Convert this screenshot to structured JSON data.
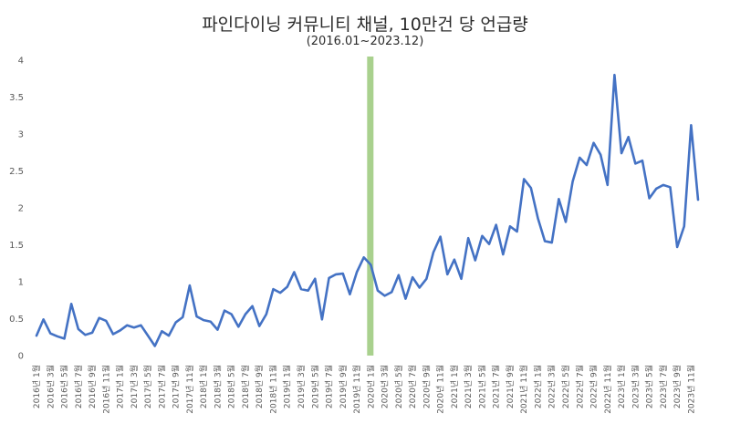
{
  "chart_data": {
    "type": "line",
    "title": "파인다이닝 커뮤니티 채널, 10만건 당 언급량",
    "subtitle": "(2016.01~2023.12)",
    "xlabel": "",
    "ylabel": "",
    "ylim": [
      0,
      4
    ],
    "yticks": [
      "0",
      "0.5",
      "1",
      "1.5",
      "2",
      "2.5",
      "3",
      "3.5",
      "4"
    ],
    "grid": false,
    "legend": "none",
    "line_color": "#4472C4",
    "marker_color": "#A9D18E",
    "marker_label": "2020년 1월",
    "x_labels": [
      "2016년 1월",
      "2016년 3월",
      "2016년 5월",
      "2016년 7월",
      "2016년 9월",
      "2016년 11월",
      "2017년 1월",
      "2017년 3월",
      "2017년 5월",
      "2017년 7월",
      "2017년 9월",
      "2017년 11월",
      "2018년 1월",
      "2018년 3월",
      "2018년 5월",
      "2018년 7월",
      "2018년 9월",
      "2018년 11월",
      "2019년 1월",
      "2019년 3월",
      "2019년 5월",
      "2019년 7월",
      "2019년 9월",
      "2019년 11월",
      "2020년 1월",
      "2020년 3월",
      "2020년 5월",
      "2020년 7월",
      "2020년 9월",
      "2020년 11월",
      "2021년 1월",
      "2021년 3월",
      "2021년 5월",
      "2021년 7월",
      "2021년 9월",
      "2021년 11월",
      "2022년 1월",
      "2022년 3월",
      "2022년 5월",
      "2022년 7월",
      "2022년 9월",
      "2022년 11월",
      "2023년 1월",
      "2023년 3월",
      "2023년 5월",
      "2023년 7월",
      "2023년 9월",
      "2023년 11월"
    ],
    "series": [
      {
        "name": "10만건 당 언급량",
        "values": [
          0.27,
          0.49,
          0.3,
          0.26,
          0.23,
          0.7,
          0.36,
          0.28,
          0.31,
          0.51,
          0.47,
          0.29,
          0.34,
          0.41,
          0.38,
          0.41,
          0.27,
          0.13,
          0.33,
          0.27,
          0.45,
          0.52,
          0.95,
          0.53,
          0.48,
          0.46,
          0.35,
          0.61,
          0.56,
          0.39,
          0.56,
          0.67,
          0.4,
          0.56,
          0.9,
          0.85,
          0.93,
          1.13,
          0.9,
          0.88,
          1.04,
          0.49,
          1.05,
          1.1,
          1.11,
          0.83,
          1.13,
          1.33,
          1.23,
          0.88,
          0.81,
          0.86,
          1.09,
          0.77,
          1.06,
          0.92,
          1.04,
          1.4,
          1.61,
          1.1,
          1.3,
          1.04,
          1.59,
          1.29,
          1.62,
          1.51,
          1.77,
          1.37,
          1.75,
          1.68,
          2.39,
          2.27,
          1.86,
          1.55,
          1.53,
          2.12,
          1.81,
          2.36,
          2.68,
          2.58,
          2.88,
          2.72,
          2.31,
          3.8,
          2.74,
          2.96,
          2.6,
          2.64,
          2.13,
          2.26,
          2.31,
          2.28,
          1.47,
          1.75,
          3.12,
          2.11
        ]
      }
    ]
  }
}
